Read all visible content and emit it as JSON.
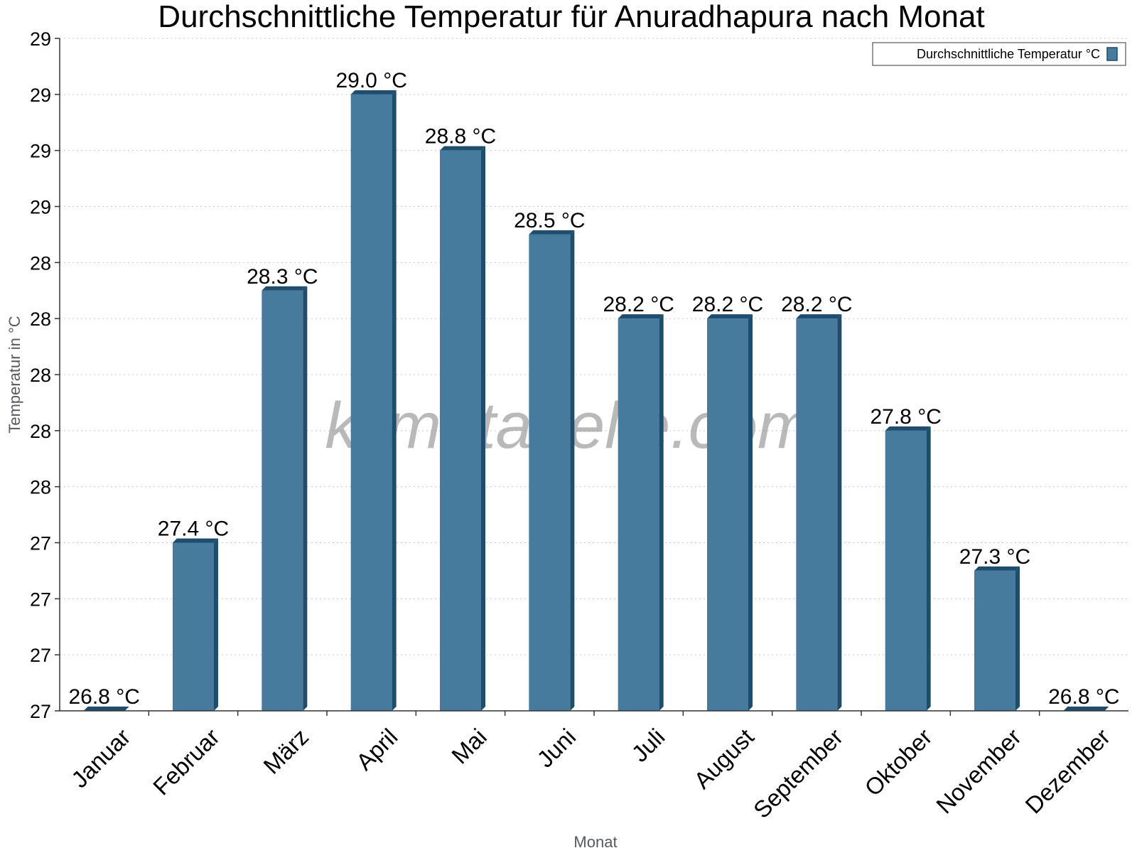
{
  "chart_data": {
    "type": "bar",
    "title": "Durchschnittliche Temperatur für Anuradhapura nach Monat",
    "xlabel": "Monat",
    "ylabel": "Temperatur in °C",
    "categories": [
      "Januar",
      "Februar",
      "März",
      "April",
      "Mai",
      "Juni",
      "Juli",
      "August",
      "September",
      "Oktober",
      "November",
      "Dezember"
    ],
    "series": [
      {
        "name": "Durchschnittliche Temperatur °C",
        "values": [
          26.8,
          27.4,
          28.3,
          29.0,
          28.8,
          28.5,
          28.2,
          28.2,
          28.2,
          27.8,
          27.3,
          26.8
        ],
        "labels": [
          "26.8 °C",
          "27.4 °C",
          "28.3 °C",
          "29.0 °C",
          "28.8 °C",
          "28.5 °C",
          "28.2 °C",
          "28.2 °C",
          "28.2 °C",
          "27.8 °C",
          "27.3 °C",
          "26.8 °C"
        ]
      }
    ],
    "ylim": [
      26.8,
      29.2
    ],
    "yticks": [
      26.8,
      27.0,
      27.2,
      27.4,
      27.6,
      27.8,
      28.0,
      28.2,
      28.4,
      28.6,
      28.8,
      29.0,
      29.2
    ],
    "ytick_labels": [
      "27",
      "27",
      "27",
      "27",
      "28",
      "28",
      "28",
      "28",
      "28",
      "29",
      "29",
      "29",
      "29"
    ],
    "grid": true,
    "legend_position": "top-right",
    "colors": {
      "bar": "#467b9e",
      "bar_dark": "#1f4d6e"
    }
  },
  "watermark": "klimatabelle.com"
}
